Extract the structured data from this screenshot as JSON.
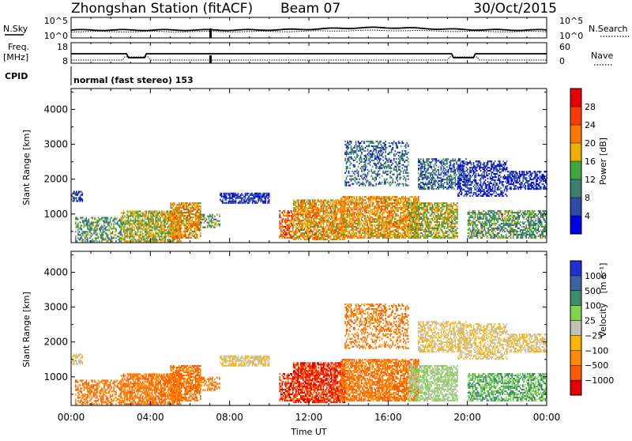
{
  "header": {
    "station": "Zhongshan Station (fitACF)",
    "beam": "Beam 07",
    "date": "30/Oct/2015"
  },
  "top_panels": {
    "nsky_label": "N.Sky",
    "nsky_ticks": [
      "10^5",
      "10^0"
    ],
    "nsearch_label": "N.Search",
    "nsearch_ticks": [
      "10^5",
      "10^0"
    ],
    "freq_label_line1": "Freq.",
    "freq_label_line2": "[MHz]",
    "freq_ticks": [
      "18",
      "8"
    ],
    "nave_label": "Nave",
    "nave_ticks": [
      "60",
      "0"
    ],
    "cpid_label": "CPID",
    "cpid_text": "normal (fast stereo) 153"
  },
  "colors": {
    "power": [
      "#0000e6",
      "#2d4ba8",
      "#3d7f6e",
      "#3ea63c",
      "#f0b000",
      "#ff7800",
      "#ff3c00",
      "#e60000"
    ],
    "velocity": [
      "#e60000",
      "#ff5a00",
      "#ff8c00",
      "#ffb400",
      "#c0c0b4",
      "#80d44a",
      "#3c8c6c",
      "#3c64a0",
      "#1e32d2"
    ]
  },
  "chart_data": [
    {
      "type": "heatmap",
      "name": "power-panel",
      "ylabel": "Slant Range [km]",
      "y_ticks": [
        1000,
        2000,
        3000,
        4000
      ],
      "ylim": [
        180,
        4600
      ],
      "x_ticks": [
        "00:00",
        "04:00",
        "08:00",
        "12:00",
        "16:00",
        "20:00",
        "00:00"
      ],
      "xlim_hours": [
        0,
        24
      ],
      "colorbar": {
        "label": "Power [dB]",
        "ticks": [
          "28",
          "24",
          "20",
          "16",
          "12",
          "8",
          "4"
        ],
        "bounds": [
          0,
          4,
          8,
          12,
          16,
          20,
          24,
          28,
          32
        ]
      }
    },
    {
      "type": "heatmap",
      "name": "velocity-panel",
      "ylabel": "Slant Range [km]",
      "y_ticks": [
        1000,
        2000,
        3000,
        4000
      ],
      "ylim": [
        180,
        4600
      ],
      "x_ticks": [
        "00:00",
        "04:00",
        "08:00",
        "12:00",
        "16:00",
        "20:00",
        "00:00"
      ],
      "xlabel": "Time UT",
      "xlim_hours": [
        0,
        24
      ],
      "colorbar": {
        "label_main": "Velocity",
        "label_unit": "[m s⁻¹]",
        "ticks": [
          "1000",
          "500",
          "100",
          "25",
          "−25",
          "−100",
          "−500",
          "−1000"
        ]
      }
    }
  ]
}
